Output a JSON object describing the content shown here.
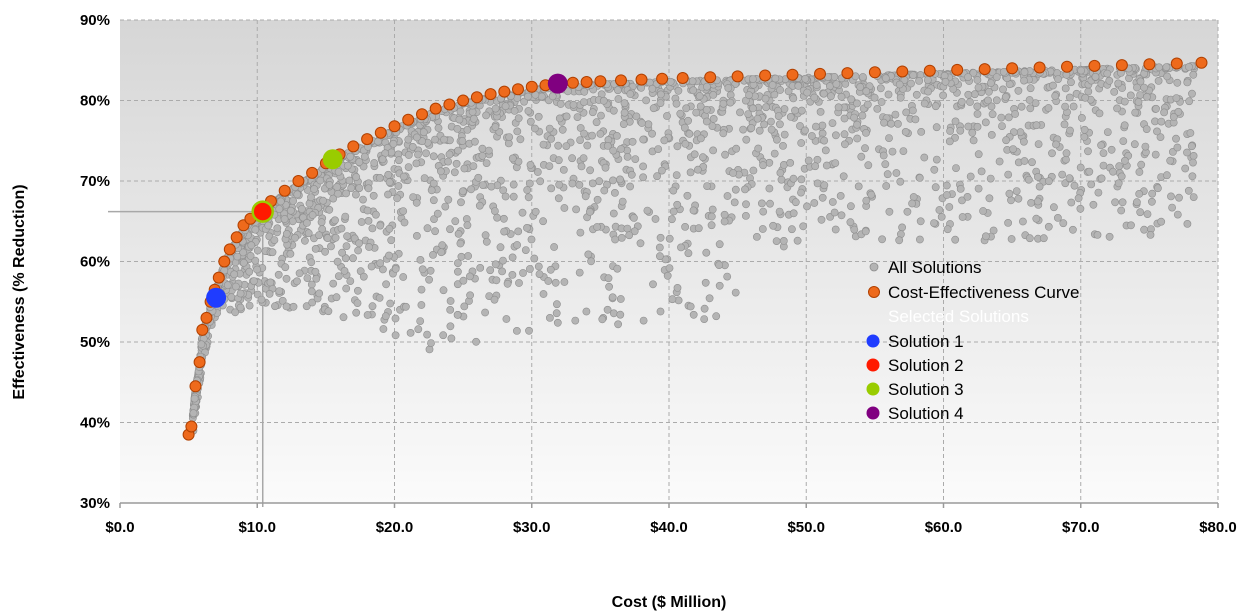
{
  "chart_data": {
    "type": "scatter",
    "xlabel": "Cost ($ Million)",
    "ylabel": "Effectiveness (% Reduction)",
    "xlim": [
      0,
      80
    ],
    "ylim": [
      30,
      90
    ],
    "x_ticks": [
      "$0.0",
      "$10.0",
      "$20.0",
      "$30.0",
      "$40.0",
      "$50.0",
      "$60.0",
      "$70.0",
      "$80.0"
    ],
    "y_ticks": [
      "30%",
      "40%",
      "50%",
      "60%",
      "70%",
      "80%",
      "90%"
    ],
    "grid": true,
    "legend_position": "center-right",
    "colors": {
      "all_solutions": "#b4b4b4",
      "curve": "#ee6a1c",
      "solution_1": "#1f3cff",
      "solution_2": "#ff1a00",
      "solution_3": "#99cc00",
      "solution_4": "#800080"
    },
    "legend": {
      "all_solutions": "All Solutions",
      "curve": "Cost-Effectiveness Curve",
      "selected_heading": "Selected Solutions",
      "solution_1": "Solution 1",
      "solution_2": "Solution 2",
      "solution_3": "Solution 3",
      "solution_4": "Solution 4"
    },
    "series": [
      {
        "name": "Cost-Effectiveness Curve",
        "points": [
          [
            5.0,
            38.5
          ],
          [
            5.2,
            39.5
          ],
          [
            5.5,
            44.5
          ],
          [
            5.8,
            47.5
          ],
          [
            6.0,
            51.5
          ],
          [
            6.3,
            53.0
          ],
          [
            6.6,
            55.0
          ],
          [
            6.9,
            56.5
          ],
          [
            7.2,
            58.0
          ],
          [
            7.6,
            60.0
          ],
          [
            8.0,
            61.5
          ],
          [
            8.5,
            63.0
          ],
          [
            9.0,
            64.5
          ],
          [
            9.5,
            65.3
          ],
          [
            10.2,
            66.3
          ],
          [
            11.0,
            67.5
          ],
          [
            12.0,
            68.8
          ],
          [
            13.0,
            70.0
          ],
          [
            14.0,
            71.0
          ],
          [
            15.0,
            72.2
          ],
          [
            16.0,
            73.3
          ],
          [
            17.0,
            74.3
          ],
          [
            18.0,
            75.2
          ],
          [
            19.0,
            76.0
          ],
          [
            20.0,
            76.8
          ],
          [
            21.0,
            77.6
          ],
          [
            22.0,
            78.3
          ],
          [
            23.0,
            79.0
          ],
          [
            24.0,
            79.5
          ],
          [
            25.0,
            80.0
          ],
          [
            26.0,
            80.4
          ],
          [
            27.0,
            80.8
          ],
          [
            28.0,
            81.1
          ],
          [
            29.0,
            81.4
          ],
          [
            30.0,
            81.7
          ],
          [
            31.0,
            81.9
          ],
          [
            32.0,
            82.1
          ],
          [
            33.0,
            82.2
          ],
          [
            34.0,
            82.3
          ],
          [
            35.0,
            82.4
          ],
          [
            36.5,
            82.5
          ],
          [
            38.0,
            82.6
          ],
          [
            39.5,
            82.7
          ],
          [
            41.0,
            82.8
          ],
          [
            43.0,
            82.9
          ],
          [
            45.0,
            83.0
          ],
          [
            47.0,
            83.1
          ],
          [
            49.0,
            83.2
          ],
          [
            51.0,
            83.3
          ],
          [
            53.0,
            83.4
          ],
          [
            55.0,
            83.5
          ],
          [
            57.0,
            83.6
          ],
          [
            59.0,
            83.7
          ],
          [
            61.0,
            83.8
          ],
          [
            63.0,
            83.9
          ],
          [
            65.0,
            84.0
          ],
          [
            67.0,
            84.1
          ],
          [
            69.0,
            84.2
          ],
          [
            71.0,
            84.3
          ],
          [
            73.0,
            84.4
          ],
          [
            75.0,
            84.5
          ],
          [
            77.0,
            84.6
          ],
          [
            78.8,
            84.7
          ]
        ]
      },
      {
        "name": "Solution 1",
        "points": [
          [
            7.0,
            55.5
          ]
        ]
      },
      {
        "name": "Solution 2",
        "points": [
          [
            10.4,
            66.2
          ]
        ]
      },
      {
        "name": "Solution 3",
        "points": [
          [
            15.5,
            72.7
          ]
        ]
      },
      {
        "name": "Solution 4",
        "points": [
          [
            31.9,
            82.1
          ]
        ]
      }
    ]
  }
}
